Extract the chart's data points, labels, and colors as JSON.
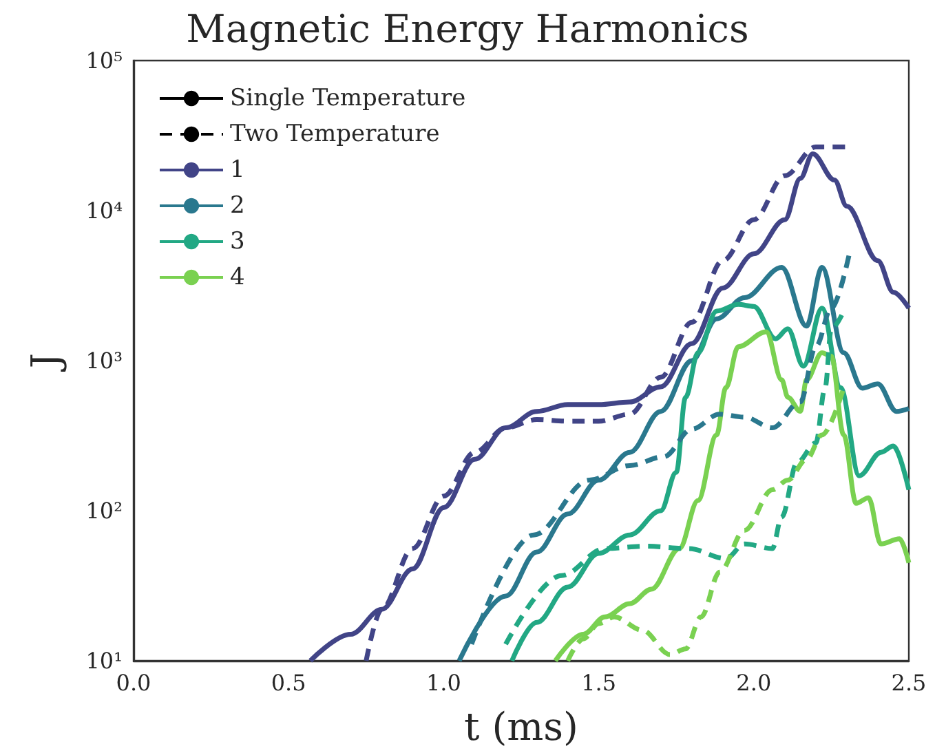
{
  "chart_data": {
    "type": "line",
    "title": "Magnetic Energy Harmonics",
    "xlabel": "t (ms)",
    "ylabel": "J",
    "log": "y",
    "grid": false,
    "legend": "top left",
    "marker": "none",
    "xlim": [
      0,
      2.5
    ],
    "xticks": [
      {
        "value": 0,
        "label": "0.0"
      },
      0.5,
      {
        "value": 1,
        "label": "1.0"
      },
      1.5,
      {
        "value": 2,
        "label": "2.0"
      },
      2.5
    ],
    "ylim": [
      10,
      100000
    ],
    "yticks": [
      {
        "value": 10,
        "label": "10¹"
      },
      {
        "value": 100,
        "label": "10²"
      },
      {
        "value": 1000,
        "label": "10³"
      },
      {
        "value": 10000,
        "label": "10⁴"
      },
      {
        "value": 100000,
        "label": "10⁵"
      }
    ],
    "series": [
      {
        "name": "Single Temperature",
        "color": "#000000",
        "line_style": "solid"
      },
      {
        "name": "Two Temperature",
        "color": "#000000",
        "line_style": "dashed"
      },
      {
        "name": "1",
        "color": "#414487",
        "line_style": "solid",
        "x": [
          0.57,
          0.7,
          0.8,
          0.9,
          1.0,
          1.1,
          1.2,
          1.3,
          1.4,
          1.5,
          1.6,
          1.7,
          1.8,
          1.9,
          2.0,
          2.1,
          2.15,
          2.19,
          2.26,
          2.3,
          2.4,
          2.45,
          2.5
        ],
        "values": [
          10,
          15,
          22,
          41,
          105,
          220,
          357,
          459,
          510,
          510,
          530,
          670,
          1300,
          3050,
          5150,
          8700,
          16400,
          23900,
          16000,
          10700,
          4640,
          2860,
          2240
        ]
      },
      {
        "name": "2",
        "color": "#2a788e",
        "line_style": "solid",
        "x": [
          1.05,
          1.2,
          1.3,
          1.4,
          1.5,
          1.6,
          1.7,
          1.8,
          1.88,
          1.97,
          2.09,
          2.17,
          2.22,
          2.29,
          2.35,
          2.4,
          2.46,
          2.5
        ],
        "values": [
          10,
          27,
          53,
          95,
          160,
          245,
          459,
          1000,
          1900,
          2630,
          4180,
          1700,
          4180,
          1130,
          656,
          700,
          459,
          480
        ]
      },
      {
        "name": "3",
        "color": "#22a884",
        "line_style": "solid",
        "x": [
          1.22,
          1.3,
          1.4,
          1.5,
          1.6,
          1.7,
          1.75,
          1.78,
          1.82,
          1.88,
          1.95,
          2.0,
          2.07,
          2.11,
          2.16,
          2.22,
          2.28,
          2.34,
          2.41,
          2.45,
          2.5
        ],
        "values": [
          10,
          18,
          31,
          52,
          69,
          100,
          180,
          570,
          1130,
          2140,
          2370,
          2300,
          1400,
          1630,
          920,
          2240,
          660,
          171,
          245,
          270,
          138
        ]
      },
      {
        "name": "4",
        "color": "#7ad151",
        "line_style": "solid",
        "x": [
          1.36,
          1.45,
          1.52,
          1.6,
          1.67,
          1.76,
          1.82,
          1.88,
          1.91,
          1.95,
          2.04,
          2.09,
          2.11,
          2.15,
          2.17,
          2.22,
          2.25,
          2.29,
          2.33,
          2.37,
          2.41,
          2.47,
          2.5
        ],
        "values": [
          10,
          15,
          19.6,
          24,
          30,
          56,
          117,
          320,
          660,
          1240,
          1560,
          745,
          570,
          460,
          745,
          1130,
          1070,
          320,
          112,
          122,
          60,
          65,
          45
        ]
      },
      {
        "color": "#414487",
        "line_style": "dashed",
        "x": [
          0.75,
          0.8,
          0.9,
          1.0,
          1.1,
          1.2,
          1.3,
          1.4,
          1.5,
          1.6,
          1.7,
          1.8,
          1.9,
          2.0,
          2.1,
          2.2,
          2.3
        ],
        "values": [
          10,
          22,
          56,
          125,
          245,
          357,
          405,
          395,
          395,
          440,
          776,
          1800,
          4640,
          8700,
          17100,
          26600,
          26600
        ]
      },
      {
        "color": "#2a788e",
        "line_style": "dashed",
        "x": [
          1.09,
          1.29,
          1.47,
          1.6,
          1.71,
          1.8,
          1.89,
          1.97,
          2.06,
          2.15,
          2.2,
          2.25,
          2.31
        ],
        "values": [
          12.9,
          69,
          160,
          200,
          229,
          350,
          440,
          420,
          357,
          532,
          1240,
          2240,
          5370
        ]
      },
      {
        "color": "#22a884",
        "line_style": "dashed",
        "x": [
          1.2,
          1.38,
          1.52,
          1.65,
          1.79,
          1.91,
          1.97,
          2.06,
          2.09,
          2.14,
          2.2,
          2.23,
          2.25,
          2.29
        ],
        "values": [
          12.9,
          37,
          56,
          58,
          56,
          48,
          60,
          56,
          91,
          210,
          283,
          660,
          1630,
          2140
        ]
      },
      {
        "color": "#7ad151",
        "line_style": "dashed",
        "x": [
          1.4,
          1.45,
          1.5,
          1.55,
          1.64,
          1.73,
          1.78,
          1.83,
          1.89,
          1.97,
          2.06,
          2.11,
          2.17,
          2.22,
          2.29
        ],
        "values": [
          10,
          14,
          17.7,
          19.6,
          16,
          11,
          12,
          19.6,
          39,
          74,
          138,
          160,
          220,
          320,
          660
        ]
      }
    ]
  }
}
